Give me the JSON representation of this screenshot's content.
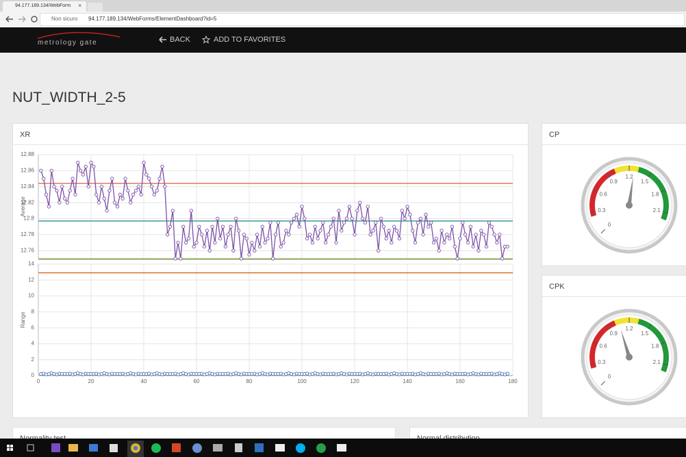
{
  "browser": {
    "tab_title": "94.177.189.134/WebForm",
    "security": "Non sicuro",
    "url": "94.177.189.134/WebForms/ElementDashboard?id=5"
  },
  "nav": {
    "logo": "metrology gate",
    "back": "BACK",
    "favorites": "ADD TO FAVORITES"
  },
  "page_title": "NUT_WIDTH_2-5",
  "panels": [
    "Normality test",
    "Normal distribution"
  ],
  "chart_data": [
    {
      "type": "line",
      "title": "XR",
      "y_label": "Average",
      "x": [
        1,
        2,
        3,
        4,
        5,
        6,
        7,
        8,
        9,
        10,
        11,
        12,
        13,
        14,
        15,
        16,
        17,
        18,
        19,
        20,
        21,
        22,
        23,
        24,
        25,
        26,
        27,
        28,
        29,
        30,
        31,
        32,
        33,
        34,
        35,
        36,
        37,
        38,
        39,
        40,
        41,
        42,
        43,
        44,
        45,
        46,
        47,
        48,
        49,
        50,
        51,
        52,
        53,
        54,
        55,
        56,
        57,
        58,
        59,
        60,
        61,
        62,
        63,
        64,
        65,
        66,
        67,
        68,
        69,
        70,
        71,
        72,
        73,
        74,
        75,
        76,
        77,
        78,
        79,
        80,
        81,
        82,
        83,
        84,
        85,
        86,
        87,
        88,
        89,
        90,
        91,
        92,
        93,
        94,
        95,
        96,
        97,
        98,
        99,
        100,
        101,
        102,
        103,
        104,
        105,
        106,
        107,
        108,
        109,
        110,
        111,
        112,
        113,
        114,
        115,
        116,
        117,
        118,
        119,
        120,
        121,
        122,
        123,
        124,
        125,
        126,
        127,
        128,
        129,
        130,
        131,
        132,
        133,
        134,
        135,
        136,
        137,
        138,
        139,
        140,
        141,
        142,
        143,
        144,
        145,
        146,
        147,
        148,
        149,
        150,
        151,
        152,
        153,
        154,
        155,
        156,
        157,
        158,
        159,
        160,
        161,
        162,
        163,
        164,
        165,
        166,
        167,
        168,
        169,
        170,
        171,
        172,
        173,
        174,
        175,
        176,
        177,
        178
      ],
      "series": [
        {
          "color": "#7b4fa6",
          "values": [
            12.86,
            12.85,
            12.83,
            12.815,
            12.86,
            12.84,
            12.835,
            12.82,
            12.84,
            12.825,
            12.82,
            12.835,
            12.85,
            12.83,
            12.87,
            12.86,
            12.855,
            12.865,
            12.84,
            12.87,
            12.865,
            12.83,
            12.82,
            12.84,
            12.825,
            12.81,
            12.835,
            12.85,
            12.82,
            12.815,
            12.83,
            12.825,
            12.85,
            12.835,
            12.82,
            12.83,
            12.835,
            12.84,
            12.83,
            12.87,
            12.855,
            12.85,
            12.84,
            12.83,
            12.835,
            12.85,
            12.865,
            12.84,
            12.78,
            12.79,
            12.81,
            12.75,
            12.77,
            12.75,
            12.79,
            12.77,
            12.775,
            12.81,
            12.765,
            12.77,
            12.79,
            12.78,
            12.765,
            12.785,
            12.76,
            12.79,
            12.77,
            12.8,
            12.775,
            12.79,
            12.765,
            12.78,
            12.79,
            12.76,
            12.8,
            12.785,
            12.75,
            12.78,
            12.775,
            12.755,
            12.77,
            12.76,
            12.78,
            12.765,
            12.79,
            12.77,
            12.775,
            12.795,
            12.75,
            12.78,
            12.795,
            12.765,
            12.77,
            12.785,
            12.78,
            12.795,
            12.8,
            12.805,
            12.79,
            12.815,
            12.8,
            12.775,
            12.78,
            12.77,
            12.79,
            12.775,
            12.785,
            12.795,
            12.77,
            12.78,
            12.79,
            12.8,
            12.77,
            12.81,
            12.785,
            12.795,
            12.8,
            12.815,
            12.8,
            12.78,
            12.81,
            12.82,
            12.8,
            12.795,
            12.815,
            12.78,
            12.785,
            12.795,
            12.76,
            12.8,
            12.79,
            12.775,
            12.785,
            12.77,
            12.79,
            12.785,
            12.775,
            12.81,
            12.8,
            12.815,
            12.805,
            12.785,
            12.77,
            12.795,
            12.8,
            12.78,
            12.805,
            12.79,
            12.795,
            12.77,
            12.775,
            12.76,
            12.785,
            12.77,
            12.78,
            12.775,
            12.79,
            12.765,
            12.75,
            12.775,
            12.795,
            12.78,
            12.77,
            12.79,
            12.765,
            12.78,
            12.76,
            12.785,
            12.78,
            12.765,
            12.795,
            12.79,
            12.78,
            12.77,
            12.78,
            12.75,
            12.765,
            12.765
          ]
        }
      ],
      "reference_lines": [
        {
          "value": 12.844,
          "color": "#e07a5f"
        },
        {
          "value": 12.797,
          "color": "#3d9a9a"
        },
        {
          "value": 12.749,
          "color": "#9cbf5a"
        }
      ],
      "xlim": [
        0,
        180
      ],
      "xticks": [
        0,
        20,
        40,
        60,
        80,
        100,
        120,
        140,
        160,
        180
      ],
      "xtick_labels": false,
      "ylim": [
        12.75,
        12.88
      ],
      "yticks": [
        12.76,
        12.78,
        12.8,
        12.82,
        12.84,
        12.86,
        12.88
      ],
      "grid": true
    },
    {
      "type": "line",
      "y_label": "Range",
      "x": [
        1,
        2,
        3,
        4,
        5,
        6,
        7,
        8,
        9,
        10,
        11,
        12,
        13,
        14,
        15,
        16,
        17,
        18,
        19,
        20,
        21,
        22,
        23,
        24,
        25,
        26,
        27,
        28,
        29,
        30,
        31,
        32,
        33,
        34,
        35,
        36,
        37,
        38,
        39,
        40,
        41,
        42,
        43,
        44,
        45,
        46,
        47,
        48,
        49,
        50,
        51,
        52,
        53,
        54,
        55,
        56,
        57,
        58,
        59,
        60,
        61,
        62,
        63,
        64,
        65,
        66,
        67,
        68,
        69,
        70,
        71,
        72,
        73,
        74,
        75,
        76,
        77,
        78,
        79,
        80,
        81,
        82,
        83,
        84,
        85,
        86,
        87,
        88,
        89,
        90,
        91,
        92,
        93,
        94,
        95,
        96,
        97,
        98,
        99,
        100,
        101,
        102,
        103,
        104,
        105,
        106,
        107,
        108,
        109,
        110,
        111,
        112,
        113,
        114,
        115,
        116,
        117,
        118,
        119,
        120,
        121,
        122,
        123,
        124,
        125,
        126,
        127,
        128,
        129,
        130,
        131,
        132,
        133,
        134,
        135,
        136,
        137,
        138,
        139,
        140,
        141,
        142,
        143,
        144,
        145,
        146,
        147,
        148,
        149,
        150,
        151,
        152,
        153,
        154,
        155,
        156,
        157,
        158,
        159,
        160,
        161,
        162,
        163,
        164,
        165,
        166,
        167,
        168,
        169,
        170,
        171,
        172,
        173,
        174,
        175,
        176,
        177,
        178
      ],
      "series": [
        {
          "color": "#4a6fb5",
          "values": [
            0.2,
            0.25,
            0.15,
            0.2,
            0.3,
            0.2,
            0.15,
            0.25,
            0.2,
            0.2,
            0.2,
            0.25,
            0.15,
            0.2,
            0.3,
            0.2,
            0.15,
            0.25,
            0.2,
            0.2,
            0.2,
            0.25,
            0.15,
            0.2,
            0.3,
            0.2,
            0.15,
            0.25,
            0.2,
            0.2,
            0.2,
            0.25,
            0.15,
            0.2,
            0.3,
            0.2,
            0.15,
            0.25,
            0.2,
            0.2,
            0.2,
            0.25,
            0.15,
            0.2,
            0.3,
            0.2,
            0.15,
            0.25,
            0.2,
            0.2,
            0.2,
            0.25,
            0.15,
            0.2,
            0.3,
            0.2,
            0.15,
            0.25,
            0.2,
            0.2,
            0.2,
            0.25,
            0.15,
            0.2,
            0.3,
            0.2,
            0.15,
            0.25,
            0.2,
            0.2,
            0.2,
            0.25,
            0.15,
            0.2,
            0.3,
            0.2,
            0.15,
            0.25,
            0.2,
            0.2,
            0.2,
            0.25,
            0.15,
            0.2,
            0.3,
            0.2,
            0.15,
            0.25,
            0.2,
            0.2,
            0.2,
            0.25,
            0.15,
            0.2,
            0.3,
            0.2,
            0.15,
            0.25,
            0.2,
            0.2,
            0.2,
            0.25,
            0.15,
            0.2,
            0.3,
            0.2,
            0.15,
            0.25,
            0.2,
            0.2,
            0.2,
            0.25,
            0.15,
            0.2,
            0.3,
            0.2,
            0.15,
            0.25,
            0.2,
            0.2,
            0.2,
            0.25,
            0.15,
            0.2,
            0.3,
            0.2,
            0.15,
            0.25,
            0.2,
            0.2,
            0.2,
            0.25,
            0.15,
            0.2,
            0.3,
            0.2,
            0.15,
            0.25,
            0.2,
            0.2,
            0.2,
            0.25,
            0.15,
            0.2,
            0.3,
            0.2,
            0.15,
            0.25,
            0.2,
            0.2,
            0.2,
            0.25,
            0.15,
            0.2,
            0.3,
            0.2,
            0.15,
            0.25,
            0.2,
            0.2,
            0.2,
            0.25,
            0.15,
            0.2,
            0.3,
            0.2,
            0.15,
            0.25,
            0.2,
            0.2,
            0.2,
            0.25,
            0.15,
            0.2,
            0.3,
            0.2,
            0.15,
            0.25
          ]
        }
      ],
      "reference_lines": [
        {
          "value": 12.9,
          "color": "#d9742a"
        }
      ],
      "xlim": [
        0,
        180
      ],
      "xticks": [
        0,
        20,
        40,
        60,
        80,
        100,
        120,
        140,
        160,
        180
      ],
      "xtick_labels": true,
      "ylim": [
        0,
        14
      ],
      "yticks": [
        0,
        2,
        4,
        6,
        8,
        10,
        12,
        14
      ],
      "grid": true
    },
    {
      "type": "gauge",
      "title": "CP",
      "value": 1.27,
      "range": [
        0,
        2.4
      ],
      "ticks": [
        0,
        0.3,
        0.6,
        0.9,
        1.2,
        1.5,
        1.8,
        2.1
      ],
      "bands": [
        {
          "from": 0.25,
          "to": 1.0,
          "color": "#d7262b"
        },
        {
          "from": 1.0,
          "to": 1.33,
          "color": "#f2e233"
        },
        {
          "from": 1.33,
          "to": 2.2,
          "color": "#1f9a3a"
        }
      ]
    },
    {
      "type": "gauge",
      "title": "CPK",
      "value": 1.05,
      "range": [
        0,
        2.4
      ],
      "ticks": [
        0,
        0.3,
        0.6,
        0.9,
        1.2,
        1.5,
        1.8,
        2.1
      ],
      "bands": [
        {
          "from": 0.25,
          "to": 1.0,
          "color": "#d7262b"
        },
        {
          "from": 1.0,
          "to": 1.33,
          "color": "#f2e233"
        },
        {
          "from": 1.33,
          "to": 2.2,
          "color": "#1f9a3a"
        }
      ]
    }
  ]
}
